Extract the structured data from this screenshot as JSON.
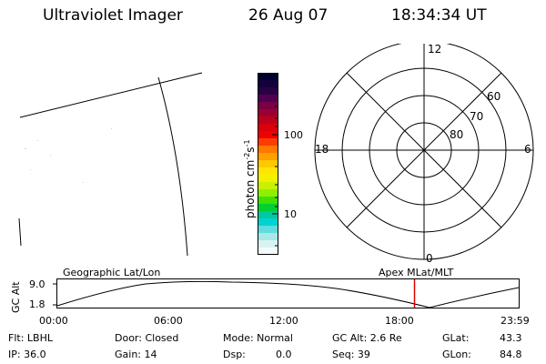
{
  "header": {
    "title": "Ultraviolet Imager",
    "date": "26 Aug 07",
    "time": "18:34:34 UT"
  },
  "colorbar": {
    "label": "photon cm",
    "label_exp1": "-2",
    "label_s": "s",
    "label_exp2": "-1",
    "ticks": [
      "100",
      "10"
    ],
    "colors": [
      "#000030",
      "#14003c",
      "#2a0046",
      "#500050",
      "#780046",
      "#9b0032",
      "#bb001c",
      "#d8000a",
      "#f00000",
      "#ff3c00",
      "#ff7800",
      "#ffa000",
      "#ffc800",
      "#ffe600",
      "#f2f000",
      "#c8f000",
      "#8ef000",
      "#40e000",
      "#00d030",
      "#00c8a0",
      "#00d2d2",
      "#60dcdc",
      "#a8e8e8",
      "#d8f2f2",
      "#f4fafa"
    ]
  },
  "polar": {
    "labels": {
      "top": "12",
      "left": "18",
      "right": "6",
      "bottom": "0"
    },
    "rings": [
      "60",
      "70",
      "80"
    ]
  },
  "timeline": {
    "ylabel": "GC Alt",
    "ymax": "9.0",
    "ymin": "1.8",
    "left_title": "Geographic Lat/Lon",
    "right_title": "Apex MLat/MLT",
    "times": [
      "00:00",
      "06:00",
      "12:00",
      "18:00",
      "23:59"
    ],
    "current_hour": 18.58
  },
  "status": {
    "flt": "Flt: LBHL",
    "ip": "IP: 36.0",
    "door": "Door: Closed",
    "gain": "Gain: 14",
    "mode": "Mode: Normal",
    "dsp_label": "Dsp:",
    "dsp_value": "0.0",
    "gcalt": "GC Alt: 2.6 Re",
    "seq": "Seq: 39",
    "glat_label": "GLat:",
    "glat_value": "43.3",
    "glon_label": "GLon:",
    "glon_value": "84.8"
  }
}
